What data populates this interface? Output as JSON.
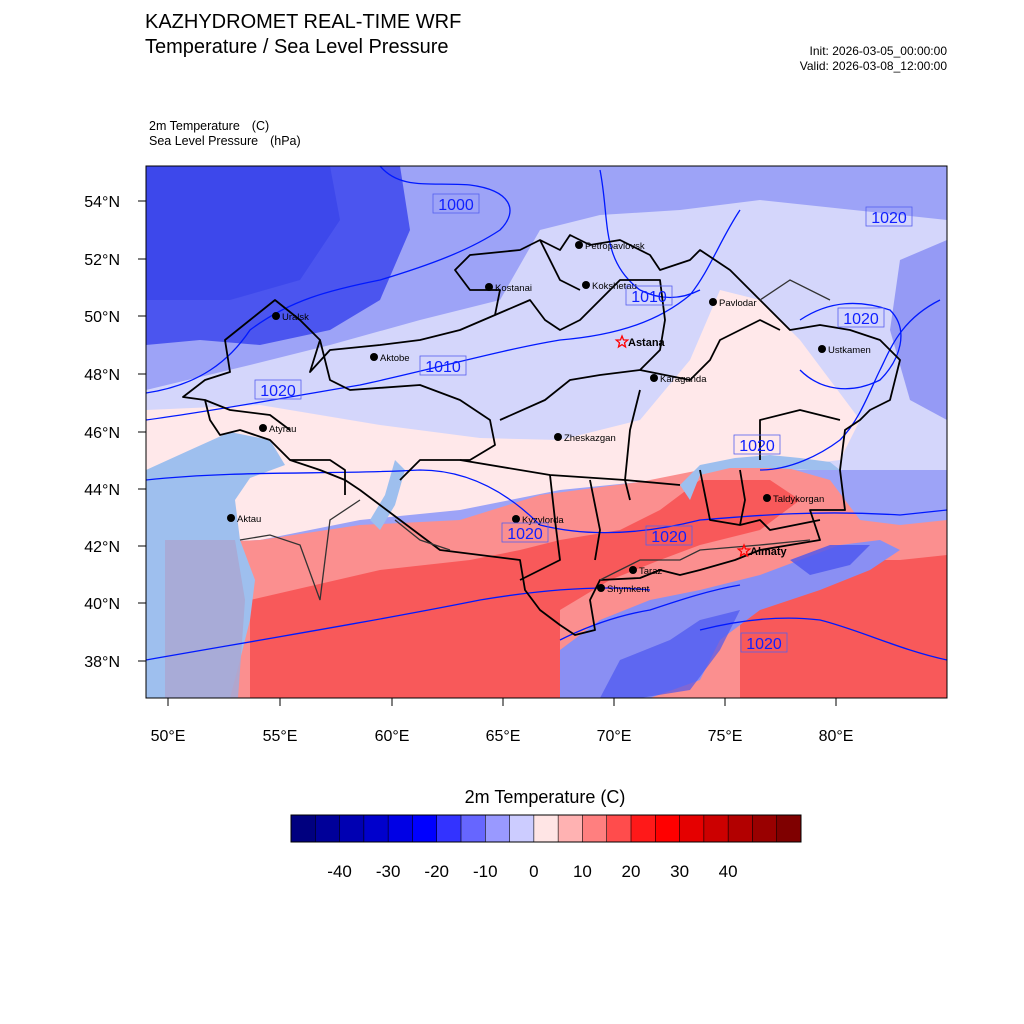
{
  "header": {
    "title_line1": "KAZHYDROMET REAL-TIME WRF",
    "title_line2": "Temperature / Sea Level Pressure",
    "init": "Init: 2026-03-05_00:00:00",
    "valid": "Valid: 2026-03-08_12:00:00"
  },
  "fields": {
    "temp_name": "2m Temperature",
    "temp_unit": "(C)",
    "slp_name": "Sea Level Pressure",
    "slp_unit": "(hPa)"
  },
  "axes": {
    "lat_labels": [
      "54°N",
      "52°N",
      "50°N",
      "48°N",
      "46°N",
      "44°N",
      "42°N",
      "40°N",
      "38°N"
    ],
    "lon_labels": [
      "50°E",
      "55°E",
      "60°E",
      "65°E",
      "70°E",
      "75°E",
      "80°E"
    ]
  },
  "cities": [
    {
      "name": "Petropavlovsk",
      "capital": false
    },
    {
      "name": "Kostanai",
      "capital": false
    },
    {
      "name": "Kokshetau",
      "capital": false
    },
    {
      "name": "Uralsk",
      "capital": false
    },
    {
      "name": "Pavlodar",
      "capital": false
    },
    {
      "name": "Astana",
      "capital": true
    },
    {
      "name": "Aktobe",
      "capital": false
    },
    {
      "name": "Ustkamen",
      "capital": false
    },
    {
      "name": "Karaganda",
      "capital": false
    },
    {
      "name": "Atyrau",
      "capital": false
    },
    {
      "name": "Zheskazgan",
      "capital": false
    },
    {
      "name": "Taldykorgan",
      "capital": false
    },
    {
      "name": "Aktau",
      "capital": false
    },
    {
      "name": "Kyzylorda",
      "capital": false
    },
    {
      "name": "Almaty",
      "capital": true
    },
    {
      "name": "Taraz",
      "capital": false
    },
    {
      "name": "Shymkent",
      "capital": false
    }
  ],
  "isobar_labels": [
    "1000",
    "1020",
    "1010",
    "1020",
    "1010",
    "1020",
    "1020",
    "1020",
    "1020",
    "1020"
  ],
  "colorbar": {
    "title": "2m Temperature  (C)",
    "tick_labels": [
      "-40",
      "-30",
      "-20",
      "-10",
      "0",
      "10",
      "20",
      "30",
      "40"
    ],
    "colors": [
      "#00007f",
      "#000099",
      "#0000b2",
      "#0000cc",
      "#0000e5",
      "#0000ff",
      "#3333ff",
      "#6666ff",
      "#9999ff",
      "#ccccff",
      "#ffe5e5",
      "#ffb2b2",
      "#ff7f7f",
      "#ff4c4c",
      "#ff1919",
      "#ff0000",
      "#e50000",
      "#cc0000",
      "#b20000",
      "#990000",
      "#7f0000"
    ]
  },
  "colors": {
    "land_cold": "#9da3f7",
    "land_cool": "#d4d6fb",
    "land_neutral": "#ffe8ea",
    "land_warm": "#fb8f8f",
    "land_hot": "#f8595a",
    "sea": "#9ebfee",
    "isobar": "#0019ff",
    "border": "#000000"
  }
}
